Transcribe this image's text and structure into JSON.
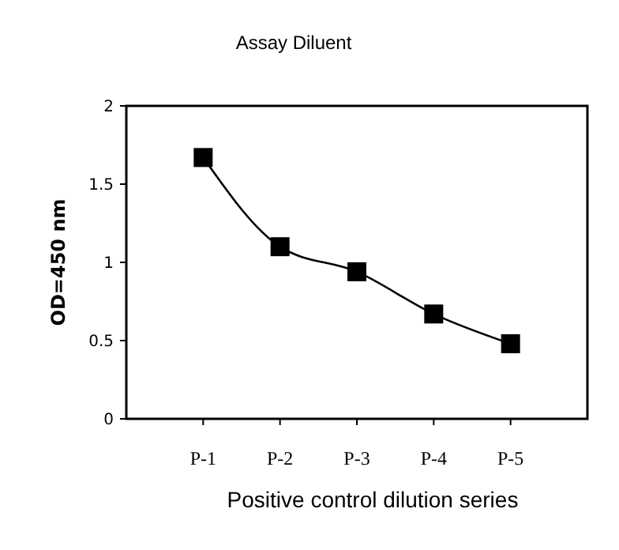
{
  "chart_data": {
    "type": "line",
    "title": "Assay Diluent",
    "xlabel": "Positive control dilution series",
    "ylabel": "OD=450 nm",
    "categories": [
      "P-1",
      "P-2",
      "P-3",
      "P-4",
      "P-5"
    ],
    "series": [
      {
        "color": "#000000",
        "values": [
          1.67,
          1.1,
          0.94,
          0.67,
          0.48
        ]
      }
    ],
    "ylim": [
      0,
      2
    ],
    "yticks": [
      0,
      0.5,
      1,
      1.5,
      2
    ],
    "marker": "square",
    "line_style": "solid",
    "grid": false
  }
}
